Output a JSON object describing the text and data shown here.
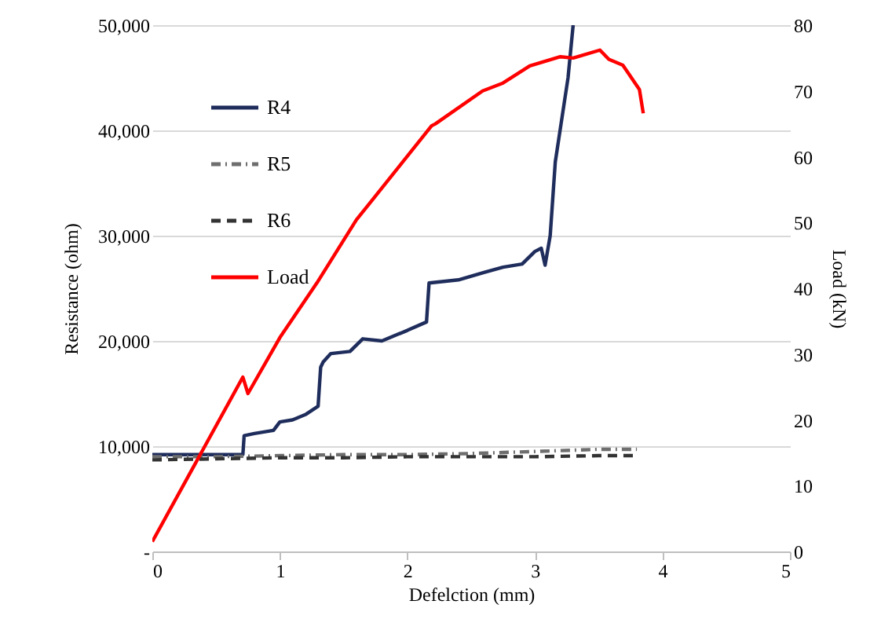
{
  "chart_data": {
    "type": "line",
    "xlabel": "Defelction (mm)",
    "ylabel": "Resistance (ohm)",
    "y2label": "Load (kN)",
    "xlim": [
      0,
      5
    ],
    "xticks": [
      0,
      1,
      2,
      3,
      4,
      5
    ],
    "ylim": [
      0,
      50000
    ],
    "yticks": [
      {
        "value": 0,
        "label": "-"
      },
      {
        "value": 10000,
        "label": "10,000"
      },
      {
        "value": 20000,
        "label": "20,000"
      },
      {
        "value": 30000,
        "label": "30,000"
      },
      {
        "value": 40000,
        "label": "40,000"
      },
      {
        "value": 50000,
        "label": "50,000"
      }
    ],
    "y2lim": [
      0,
      80
    ],
    "y2ticks": [
      0,
      10,
      20,
      30,
      40,
      50,
      60,
      70,
      80
    ],
    "grid": "y",
    "legend": "top left",
    "marker": "none",
    "series": [
      {
        "name": "R4",
        "color": "#1f2d5c",
        "line_style": "solid",
        "x": [
          0,
          0.71,
          0.72,
          0.8,
          0.95,
          1.0,
          1.1,
          1.2,
          1.3,
          1.32,
          1.34,
          1.4,
          1.55,
          1.65,
          1.8,
          2.0,
          2.15,
          2.17,
          2.4,
          2.6,
          2.75,
          2.9,
          3.0,
          3.05,
          3.08,
          3.12,
          3.16,
          3.26,
          3.3
        ],
        "values": [
          9200,
          9200,
          11000,
          11200,
          11500,
          12300,
          12500,
          13000,
          13800,
          17500,
          18000,
          18800,
          19000,
          20200,
          20000,
          21000,
          21800,
          25500,
          25800,
          26500,
          27000,
          27300,
          28500,
          28800,
          27200,
          30000,
          37000,
          45000,
          50000
        ]
      },
      {
        "name": "R5",
        "color": "#6e6e6e",
        "line_style": "dashdot",
        "x": [
          0,
          0.5,
          1.0,
          1.5,
          2.0,
          2.5,
          3.0,
          3.5,
          3.8
        ],
        "values": [
          9000,
          9000,
          9100,
          9200,
          9200,
          9300,
          9500,
          9700,
          9700
        ]
      },
      {
        "name": "R6",
        "color": "#333333",
        "line_style": "dashed",
        "x": [
          0,
          0.5,
          1.0,
          1.5,
          2.0,
          2.5,
          3.0,
          3.5,
          3.8
        ],
        "values": [
          8700,
          8800,
          8900,
          8900,
          9000,
          9000,
          9000,
          9100,
          9100
        ]
      },
      {
        "name": "Load",
        "color": "#ff0000",
        "line_style": "solid",
        "axis": "y2",
        "x": [
          0,
          0.71,
          0.75,
          1.0,
          1.29,
          1.6,
          1.72,
          2.19,
          2.22,
          2.59,
          2.75,
          2.96,
          3.2,
          3.3,
          3.51,
          3.58,
          3.69,
          3.82,
          3.85
        ],
        "values": [
          1.5,
          26.5,
          24,
          32.5,
          40.8,
          50.4,
          53.3,
          64.7,
          65,
          70,
          71.2,
          73.8,
          75.2,
          75,
          76.2,
          74.8,
          73.9,
          70.2,
          66.6
        ]
      }
    ]
  }
}
